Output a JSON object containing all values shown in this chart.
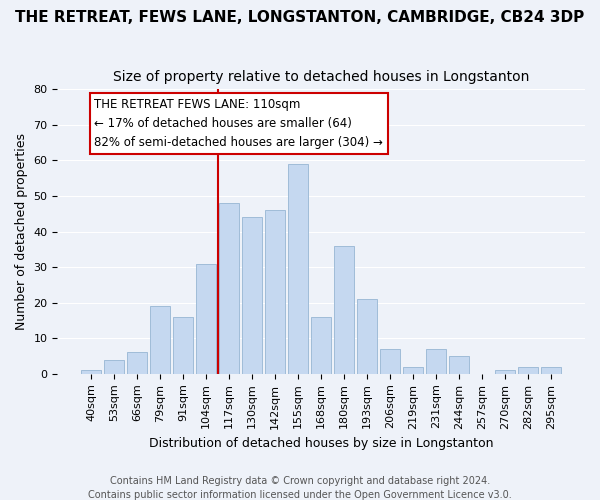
{
  "title": "THE RETREAT, FEWS LANE, LONGSTANTON, CAMBRIDGE, CB24 3DP",
  "subtitle": "Size of property relative to detached houses in Longstanton",
  "xlabel": "Distribution of detached houses by size in Longstanton",
  "ylabel": "Number of detached properties",
  "bin_labels": [
    "40sqm",
    "53sqm",
    "66sqm",
    "79sqm",
    "91sqm",
    "104sqm",
    "117sqm",
    "130sqm",
    "142sqm",
    "155sqm",
    "168sqm",
    "180sqm",
    "193sqm",
    "206sqm",
    "219sqm",
    "231sqm",
    "244sqm",
    "257sqm",
    "270sqm",
    "282sqm",
    "295sqm"
  ],
  "bar_values": [
    1,
    4,
    6,
    19,
    16,
    31,
    48,
    44,
    46,
    59,
    16,
    36,
    21,
    7,
    2,
    7,
    5,
    0,
    1,
    2,
    2
  ],
  "bar_color": "#c5d8f0",
  "bar_edge_color": "#a0bcd8",
  "redline_x": 5.5,
  "redline_color": "#cc0000",
  "ylim": [
    0,
    80
  ],
  "yticks": [
    0,
    10,
    20,
    30,
    40,
    50,
    60,
    70,
    80
  ],
  "annotation_title": "THE RETREAT FEWS LANE: 110sqm",
  "annotation_line1": "← 17% of detached houses are smaller (64)",
  "annotation_line2": "82% of semi-detached houses are larger (304) →",
  "annotation_box_color": "#ffffff",
  "annotation_box_edge": "#cc0000",
  "footer1": "Contains HM Land Registry data © Crown copyright and database right 2024.",
  "footer2": "Contains public sector information licensed under the Open Government Licence v3.0.",
  "background_color": "#eef2f9",
  "grid_color": "#ffffff",
  "title_fontsize": 11,
  "subtitle_fontsize": 10,
  "axis_label_fontsize": 9,
  "tick_fontsize": 8,
  "annotation_title_fontsize": 9,
  "annotation_body_fontsize": 8.5,
  "footer_fontsize": 7
}
